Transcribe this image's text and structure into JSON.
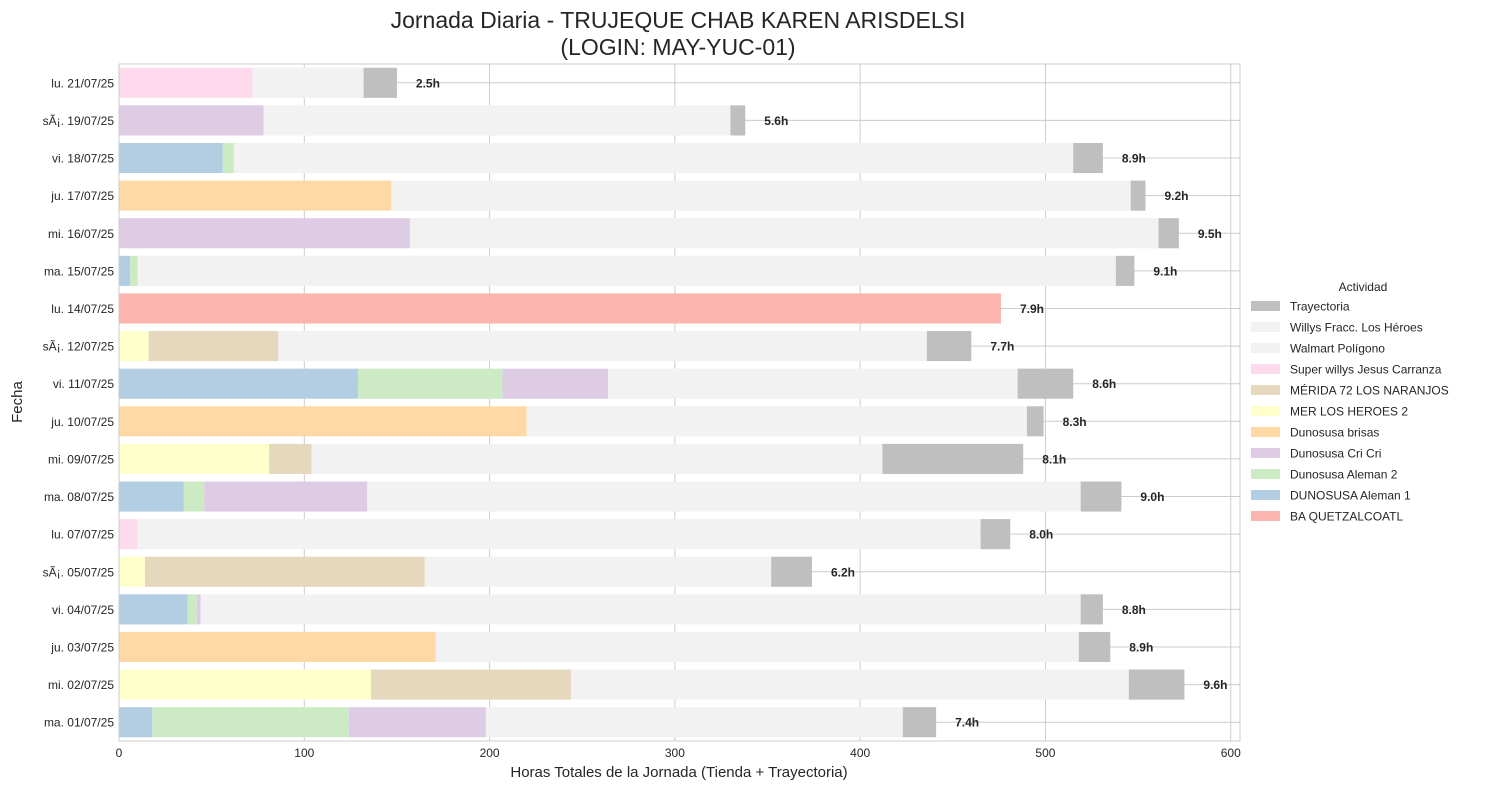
{
  "chart_data": {
    "type": "bar",
    "orientation": "horizontal",
    "stacked": true,
    "title_line1": "Jornada Diaria - TRUJEQUE CHAB KAREN ARISDELSI",
    "title_line2": "(LOGIN: MAY-YUC-01)",
    "xlabel": "Horas Totales de la Jornada (Tienda + Trayectoria)",
    "ylabel": "Fecha",
    "xlim": [
      0,
      605
    ],
    "xticks": [
      0,
      100,
      200,
      300,
      400,
      500,
      600
    ],
    "grid": true,
    "legend_title": "Actividad",
    "legend_position": "right",
    "series": [
      {
        "name": "DUNOSUSA Aleman 1",
        "color": "#b3cde3"
      },
      {
        "name": "Dunosusa Aleman 2",
        "color": "#ccebc5"
      },
      {
        "name": "Dunosusa Cri Cri",
        "color": "#decbe4"
      },
      {
        "name": "Dunosusa brisas",
        "color": "#fed9a6"
      },
      {
        "name": "MER LOS HEROES 2",
        "color": "#ffffcc"
      },
      {
        "name": "MÉRIDA 72 LOS NARANJOS",
        "color": "#e5d8bd"
      },
      {
        "name": "Super willys Jesus Carranza",
        "color": "#fddaec"
      },
      {
        "name": "Walmart Polígono",
        "color": "#f2f2f2"
      },
      {
        "name": "Willys Fracc. Los Héroes",
        "color": "#f2f2f2"
      },
      {
        "name": "Trayectoria",
        "color": "#bfbfbf"
      },
      {
        "name": "BA QUETZALCOATL",
        "color": "#fbb4ae"
      }
    ],
    "legend_order": [
      "Trayectoria",
      "Willys Fracc. Los Héroes",
      "Walmart Polígono",
      "Super willys Jesus Carranza",
      "MÉRIDA 72 LOS NARANJOS",
      "MER LOS HEROES 2",
      "Dunosusa brisas",
      "Dunosusa Cri Cri",
      "Dunosusa Aleman 2",
      "DUNOSUSA Aleman 1",
      "BA QUETZALCOATL"
    ],
    "rows": [
      {
        "date": "lu. 21/07/25",
        "total_label": "2.5h",
        "segments": [
          [
            "Super willys Jesus Carranza",
            72
          ],
          [
            "Willys Fracc. Los Héroes",
            60
          ],
          [
            "Trayectoria",
            18
          ]
        ]
      },
      {
        "date": "sÃ¡. 19/07/25",
        "total_label": "5.6h",
        "segments": [
          [
            "Dunosusa Cri Cri",
            78
          ],
          [
            "Walmart Polígono",
            252
          ],
          [
            "Trayectoria",
            8
          ]
        ]
      },
      {
        "date": "vi. 18/07/25",
        "total_label": "8.9h",
        "segments": [
          [
            "DUNOSUSA Aleman 1",
            56
          ],
          [
            "Dunosusa Aleman 2",
            6
          ],
          [
            "Walmart Polígono",
            453
          ],
          [
            "Trayectoria",
            16
          ]
        ]
      },
      {
        "date": "ju. 17/07/25",
        "total_label": "9.2h",
        "segments": [
          [
            "Dunosusa brisas",
            147
          ],
          [
            "Walmart Polígono",
            399
          ],
          [
            "Trayectoria",
            8
          ]
        ]
      },
      {
        "date": "mi. 16/07/25",
        "total_label": "9.5h",
        "segments": [
          [
            "Dunosusa Cri Cri",
            157
          ],
          [
            "Walmart Polígono",
            404
          ],
          [
            "Trayectoria",
            11
          ]
        ]
      },
      {
        "date": "ma. 15/07/25",
        "total_label": "9.1h",
        "segments": [
          [
            "DUNOSUSA Aleman 1",
            6
          ],
          [
            "Dunosusa Aleman 2",
            4
          ],
          [
            "Walmart Polígono",
            528
          ],
          [
            "Trayectoria",
            10
          ]
        ]
      },
      {
        "date": "lu. 14/07/25",
        "total_label": "7.9h",
        "segments": [
          [
            "BA QUETZALCOATL",
            476
          ]
        ]
      },
      {
        "date": "sÃ¡. 12/07/25",
        "total_label": "7.7h",
        "segments": [
          [
            "MER LOS HEROES 2",
            16
          ],
          [
            "MÉRIDA 72 LOS NARANJOS",
            70
          ],
          [
            "Walmart Polígono",
            350
          ],
          [
            "Trayectoria",
            24
          ]
        ]
      },
      {
        "date": "vi. 11/07/25",
        "total_label": "8.6h",
        "segments": [
          [
            "DUNOSUSA Aleman 1",
            129
          ],
          [
            "Dunosusa Aleman 2",
            78
          ],
          [
            "Dunosusa Cri Cri",
            57
          ],
          [
            "Walmart Polígono",
            221
          ],
          [
            "Trayectoria",
            30
          ]
        ]
      },
      {
        "date": "ju. 10/07/25",
        "total_label": "8.3h",
        "segments": [
          [
            "Dunosusa brisas",
            220
          ],
          [
            "Walmart Polígono",
            270
          ],
          [
            "Trayectoria",
            9
          ]
        ]
      },
      {
        "date": "mi. 09/07/25",
        "total_label": "8.1h",
        "segments": [
          [
            "MER LOS HEROES 2",
            81
          ],
          [
            "MÉRIDA 72 LOS NARANJOS",
            23
          ],
          [
            "Walmart Polígono",
            308
          ],
          [
            "Trayectoria",
            76
          ]
        ]
      },
      {
        "date": "ma. 08/07/25",
        "total_label": "9.0h",
        "segments": [
          [
            "DUNOSUSA Aleman 1",
            35
          ],
          [
            "Dunosusa Aleman 2",
            11
          ],
          [
            "Dunosusa Cri Cri",
            88
          ],
          [
            "Walmart Polígono",
            385
          ],
          [
            "Trayectoria",
            22
          ]
        ]
      },
      {
        "date": "lu. 07/07/25",
        "total_label": "8.0h",
        "segments": [
          [
            "Super willys Jesus Carranza",
            10
          ],
          [
            "Willys Fracc. Los Héroes",
            455
          ],
          [
            "Trayectoria",
            16
          ]
        ]
      },
      {
        "date": "sÃ¡. 05/07/25",
        "total_label": "6.2h",
        "segments": [
          [
            "MER LOS HEROES 2",
            14
          ],
          [
            "MÉRIDA 72 LOS NARANJOS",
            151
          ],
          [
            "Walmart Polígono",
            187
          ],
          [
            "Trayectoria",
            22
          ]
        ]
      },
      {
        "date": "vi. 04/07/25",
        "total_label": "8.8h",
        "segments": [
          [
            "DUNOSUSA Aleman 1",
            37
          ],
          [
            "Dunosusa Aleman 2",
            5
          ],
          [
            "Dunosusa Cri Cri",
            2
          ],
          [
            "Walmart Polígono",
            475
          ],
          [
            "Trayectoria",
            12
          ]
        ]
      },
      {
        "date": "ju. 03/07/25",
        "total_label": "8.9h",
        "segments": [
          [
            "Dunosusa brisas",
            171
          ],
          [
            "Walmart Polígono",
            347
          ],
          [
            "Trayectoria",
            17
          ]
        ]
      },
      {
        "date": "mi. 02/07/25",
        "total_label": "9.6h",
        "segments": [
          [
            "MER LOS HEROES 2",
            136
          ],
          [
            "MÉRIDA 72 LOS NARANJOS",
            108
          ],
          [
            "Walmart Polígono",
            301
          ],
          [
            "Trayectoria",
            30
          ]
        ]
      },
      {
        "date": "ma. 01/07/25",
        "total_label": "7.4h",
        "segments": [
          [
            "DUNOSUSA Aleman 1",
            18
          ],
          [
            "Dunosusa Aleman 2",
            106
          ],
          [
            "Dunosusa Cri Cri",
            74
          ],
          [
            "Walmart Polígono",
            225
          ],
          [
            "Trayectoria",
            18
          ]
        ]
      }
    ]
  }
}
